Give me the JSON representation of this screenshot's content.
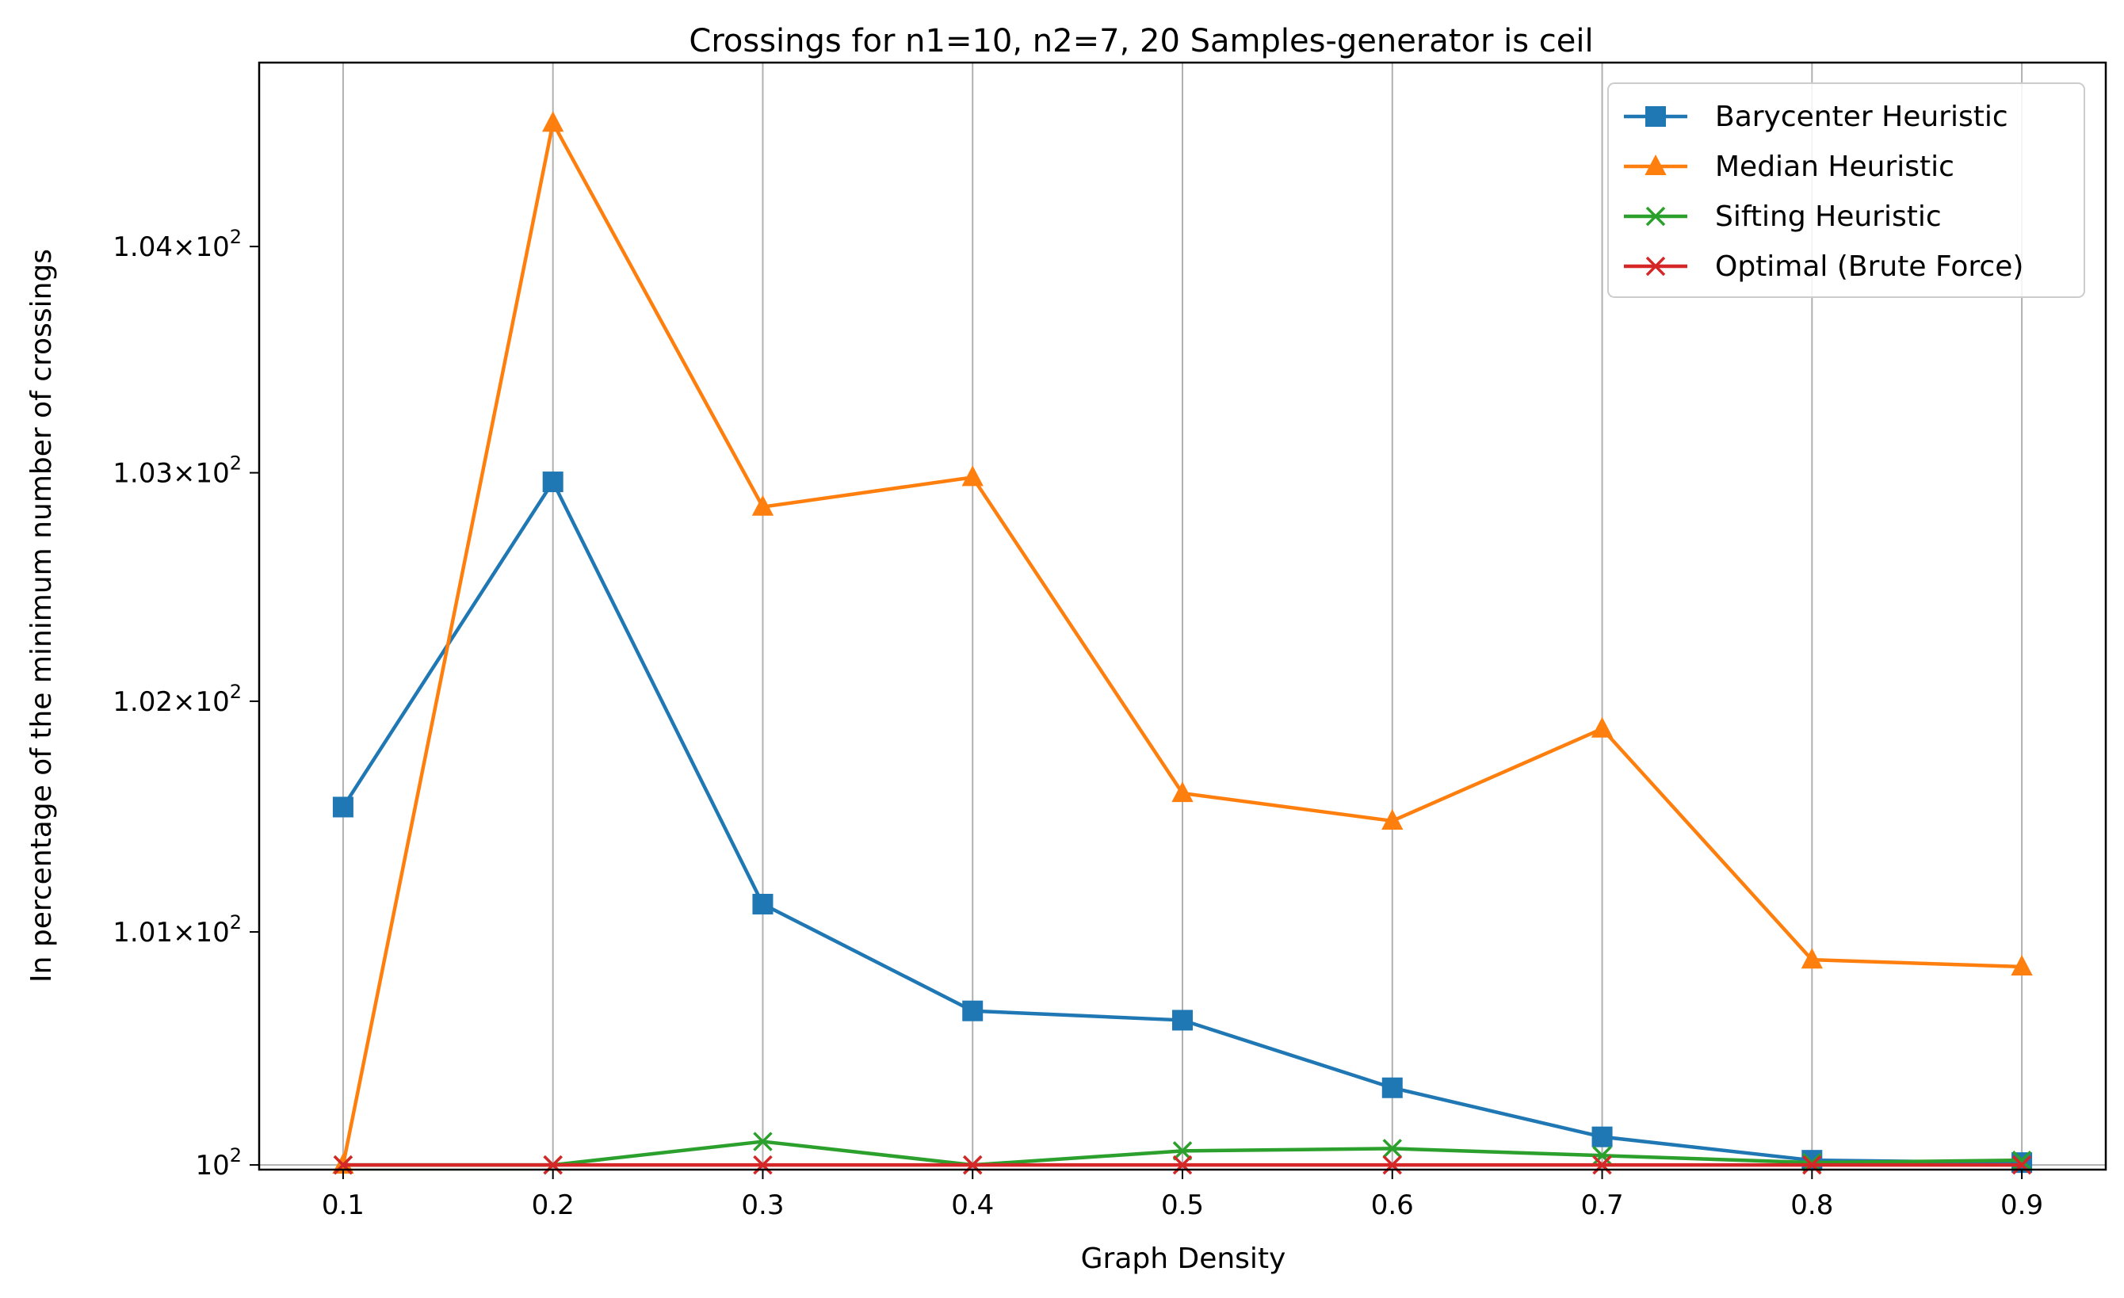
{
  "chart_data": {
    "type": "line",
    "title": "Crossings for n1=10, n2=7, 20 Samples-generator is ceil",
    "xlabel": "Graph Density",
    "ylabel": "In percentage of the minimum number of crossings",
    "x": [
      0.1,
      0.2,
      0.3,
      0.4,
      0.5,
      0.6,
      0.7,
      0.8,
      0.9
    ],
    "xticks": [
      "0.1",
      "0.2",
      "0.3",
      "0.4",
      "0.5",
      "0.6",
      "0.7",
      "0.8",
      "0.9"
    ],
    "xlim": [
      0.06,
      0.94
    ],
    "ylim": [
      99.98,
      104.82
    ],
    "yscale": "log",
    "yticks": [
      {
        "value": 100,
        "mantissa": "",
        "exp": "2"
      },
      {
        "value": 101,
        "mantissa": "1.01×",
        "exp": "2"
      },
      {
        "value": 102,
        "mantissa": "1.02×",
        "exp": "2"
      },
      {
        "value": 103,
        "mantissa": "1.03×",
        "exp": "2"
      },
      {
        "value": 104,
        "mantissa": "1.04×",
        "exp": "2"
      }
    ],
    "grid": "x",
    "legend_position": "top-right",
    "series": [
      {
        "name": "Barycenter Heuristic",
        "color": "#1f77b4",
        "marker": "square",
        "values": [
          101.54,
          102.96,
          101.12,
          100.66,
          100.62,
          100.33,
          100.12,
          100.02,
          100.01
        ]
      },
      {
        "name": "Median Heuristic",
        "color": "#ff7f0e",
        "marker": "triangle",
        "values": [
          100.0,
          104.55,
          102.85,
          102.98,
          101.6,
          101.48,
          101.88,
          100.88,
          100.85
        ]
      },
      {
        "name": "Sifting Heuristic",
        "color": "#2ca02c",
        "marker": "x",
        "values": [
          100.0,
          100.0,
          100.1,
          100.0,
          100.06,
          100.07,
          100.04,
          100.01,
          100.02
        ]
      },
      {
        "name": "Optimal (Brute Force)",
        "color": "#d62728",
        "marker": "x",
        "values": [
          100.0,
          100.0,
          100.0,
          100.0,
          100.0,
          100.0,
          100.0,
          100.0,
          100.0
        ]
      }
    ]
  }
}
